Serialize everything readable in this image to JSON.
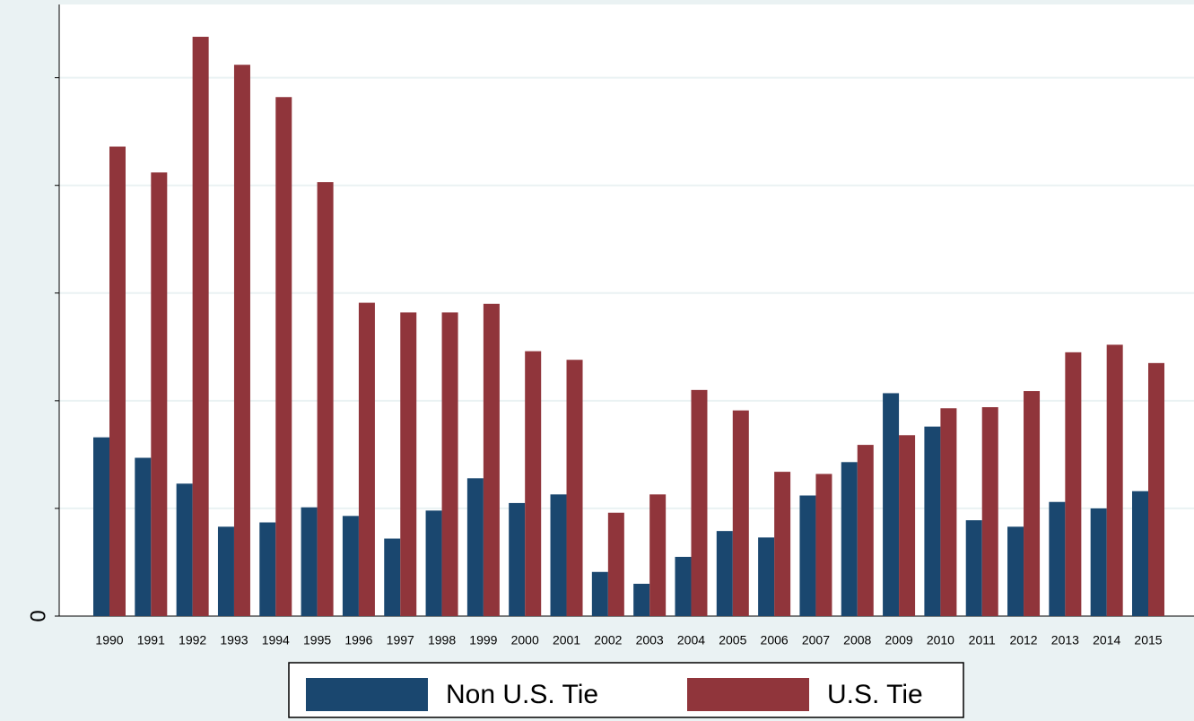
{
  "chart_data": {
    "type": "bar",
    "categories": [
      "1990",
      "1991",
      "1992",
      "1993",
      "1994",
      "1995",
      "1996",
      "1997",
      "1998",
      "1999",
      "2000",
      "2001",
      "2002",
      "2003",
      "2004",
      "2005",
      "2006",
      "2007",
      "2008",
      "2009",
      "2010",
      "2011",
      "2012",
      "2013",
      "2014",
      "2015"
    ],
    "series": [
      {
        "name": "Non U.S. Tie",
        "color": "#1a476f",
        "values": [
          1.66,
          1.47,
          1.23,
          0.83,
          0.87,
          1.01,
          0.93,
          0.72,
          0.98,
          1.28,
          1.05,
          1.13,
          0.41,
          0.3,
          0.55,
          0.79,
          0.73,
          1.12,
          1.43,
          2.07,
          1.76,
          0.89,
          0.83,
          1.06,
          1.0,
          1.16
        ]
      },
      {
        "name": "U.S. Tie",
        "color": "#90353b",
        "values": [
          4.36,
          4.12,
          5.38,
          5.12,
          4.82,
          4.03,
          2.91,
          2.82,
          2.82,
          2.9,
          2.46,
          2.38,
          0.96,
          1.13,
          2.1,
          1.91,
          1.34,
          1.32,
          1.59,
          1.68,
          1.93,
          1.94,
          2.09,
          2.45,
          2.52,
          2.35
        ]
      }
    ],
    "ylim": [
      0,
      5.68
    ],
    "yticks": [
      0,
      {
        "value": 1,
        "label": null
      },
      {
        "value": 2,
        "label": null
      },
      {
        "value": 3,
        "label": null
      },
      {
        "value": 4,
        "label": null
      },
      {
        "value": 5,
        "label": null
      }
    ],
    "grid": true,
    "legend": "bottom"
  }
}
